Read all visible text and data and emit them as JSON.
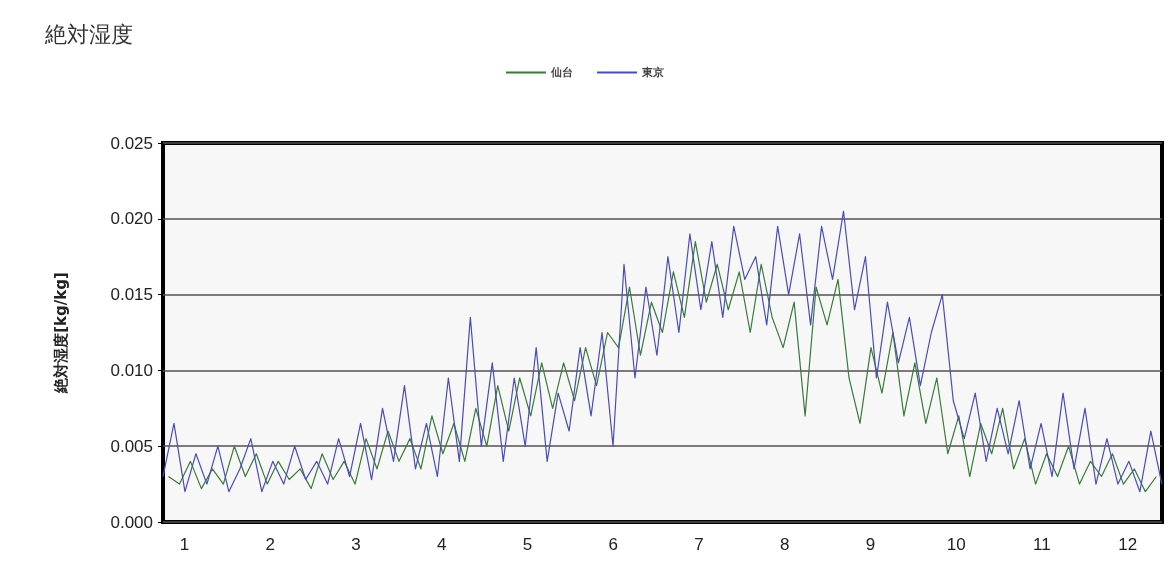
{
  "chart_data": {
    "type": "line",
    "title": "絶対湿度",
    "ylabel": "絶対湿度[kg/kg]",
    "xlim": [
      0.75,
      12.4
    ],
    "xticks": [
      1,
      2,
      3,
      4,
      5,
      6,
      7,
      8,
      9,
      10,
      11,
      12
    ],
    "ylim": [
      0,
      0.025
    ],
    "yticks": [
      {
        "value": 0,
        "label": "0.000"
      },
      {
        "value": 0.005,
        "label": "0.005"
      },
      {
        "value": 0.01,
        "label": "0.010"
      },
      {
        "value": 0.015,
        "label": "0.015"
      },
      {
        "value": 0.02,
        "label": "0.020"
      },
      {
        "value": 0.025,
        "label": "0.025"
      }
    ],
    "grid": "y",
    "legend": "top",
    "marker": "none",
    "line_style": "solid",
    "series": [
      {
        "name": "仙台",
        "color": "#3a7a3a",
        "x": [
          0.814,
          0.942,
          1.07,
          1.198,
          1.326,
          1.454,
          1.582,
          1.71,
          1.838,
          1.966,
          2.094,
          2.222,
          2.35,
          2.478,
          2.606,
          2.734,
          2.862,
          2.99,
          3.118,
          3.246,
          3.374,
          3.502,
          3.63,
          3.758,
          3.886,
          4.014,
          4.142,
          4.27,
          4.398,
          4.526,
          4.654,
          4.782,
          4.91,
          5.038,
          5.166,
          5.294,
          5.422,
          5.55,
          5.678,
          5.806,
          5.934,
          6.062,
          6.19,
          6.318,
          6.446,
          6.574,
          6.702,
          6.83,
          6.958,
          7.086,
          7.214,
          7.342,
          7.47,
          7.598,
          7.726,
          7.854,
          7.982,
          8.11,
          8.238,
          8.366,
          8.494,
          8.622,
          8.75,
          8.878,
          9.006,
          9.134,
          9.262,
          9.39,
          9.518,
          9.646,
          9.774,
          9.902,
          10.03,
          10.158,
          10.286,
          10.414,
          10.542,
          10.67,
          10.798,
          10.926,
          11.054,
          11.182,
          11.31,
          11.438,
          11.566,
          11.694,
          11.822,
          11.95,
          12.078,
          12.206,
          12.334
        ],
        "values": [
          0.003,
          0.0025,
          0.004,
          0.0022,
          0.0035,
          0.0025,
          0.005,
          0.003,
          0.0045,
          0.0025,
          0.004,
          0.0028,
          0.0035,
          0.0022,
          0.0045,
          0.0028,
          0.004,
          0.0025,
          0.0055,
          0.0035,
          0.006,
          0.004,
          0.0055,
          0.0035,
          0.007,
          0.0045,
          0.0065,
          0.004,
          0.0075,
          0.005,
          0.009,
          0.006,
          0.0095,
          0.007,
          0.0105,
          0.0075,
          0.0105,
          0.008,
          0.0115,
          0.009,
          0.0125,
          0.0115,
          0.0155,
          0.011,
          0.0145,
          0.0125,
          0.0165,
          0.0135,
          0.0185,
          0.0145,
          0.017,
          0.014,
          0.0165,
          0.0125,
          0.017,
          0.0135,
          0.0115,
          0.0145,
          0.007,
          0.0155,
          0.013,
          0.016,
          0.0095,
          0.0065,
          0.0115,
          0.0085,
          0.0125,
          0.007,
          0.0105,
          0.0065,
          0.0095,
          0.0045,
          0.007,
          0.003,
          0.0065,
          0.0045,
          0.0075,
          0.0035,
          0.0055,
          0.0025,
          0.0045,
          0.003,
          0.005,
          0.0025,
          0.004,
          0.003,
          0.0045,
          0.0025,
          0.0035,
          0.002,
          0.003
        ]
      },
      {
        "name": "東京",
        "color": "#4a4db8",
        "x": [
          0.75,
          0.878,
          1.006,
          1.134,
          1.262,
          1.39,
          1.518,
          1.646,
          1.774,
          1.902,
          2.03,
          2.158,
          2.286,
          2.414,
          2.542,
          2.67,
          2.798,
          2.926,
          3.054,
          3.182,
          3.31,
          3.438,
          3.566,
          3.694,
          3.822,
          3.95,
          4.078,
          4.206,
          4.334,
          4.462,
          4.59,
          4.718,
          4.846,
          4.974,
          5.102,
          5.23,
          5.358,
          5.486,
          5.614,
          5.742,
          5.87,
          5.998,
          6.126,
          6.254,
          6.382,
          6.51,
          6.638,
          6.766,
          6.894,
          7.022,
          7.15,
          7.278,
          7.406,
          7.534,
          7.662,
          7.79,
          7.918,
          8.046,
          8.174,
          8.302,
          8.43,
          8.558,
          8.686,
          8.814,
          8.942,
          9.07,
          9.198,
          9.326,
          9.454,
          9.582,
          9.71,
          9.838,
          9.966,
          10.094,
          10.222,
          10.35,
          10.478,
          10.606,
          10.734,
          10.862,
          10.99,
          11.118,
          11.246,
          11.374,
          11.502,
          11.63,
          11.758,
          11.886,
          12.014,
          12.142,
          12.27,
          12.398
        ],
        "values": [
          0.003,
          0.0065,
          0.002,
          0.0045,
          0.0025,
          0.005,
          0.002,
          0.0035,
          0.0055,
          0.002,
          0.004,
          0.0025,
          0.005,
          0.0028,
          0.004,
          0.0025,
          0.0055,
          0.003,
          0.0065,
          0.0028,
          0.0075,
          0.004,
          0.009,
          0.0035,
          0.0065,
          0.003,
          0.0095,
          0.004,
          0.0135,
          0.005,
          0.0105,
          0.004,
          0.0095,
          0.005,
          0.0115,
          0.004,
          0.0085,
          0.006,
          0.0115,
          0.007,
          0.0125,
          0.005,
          0.017,
          0.0095,
          0.0155,
          0.011,
          0.0175,
          0.0125,
          0.019,
          0.014,
          0.0185,
          0.0135,
          0.0195,
          0.016,
          0.0175,
          0.013,
          0.0195,
          0.015,
          0.019,
          0.013,
          0.0195,
          0.016,
          0.0205,
          0.014,
          0.0175,
          0.0095,
          0.0145,
          0.0105,
          0.0135,
          0.009,
          0.0125,
          0.015,
          0.008,
          0.0055,
          0.0085,
          0.004,
          0.0075,
          0.0045,
          0.008,
          0.0035,
          0.0065,
          0.003,
          0.0085,
          0.0035,
          0.0075,
          0.0025,
          0.0055,
          0.0025,
          0.004,
          0.002,
          0.006,
          0.0025
        ]
      }
    ]
  }
}
